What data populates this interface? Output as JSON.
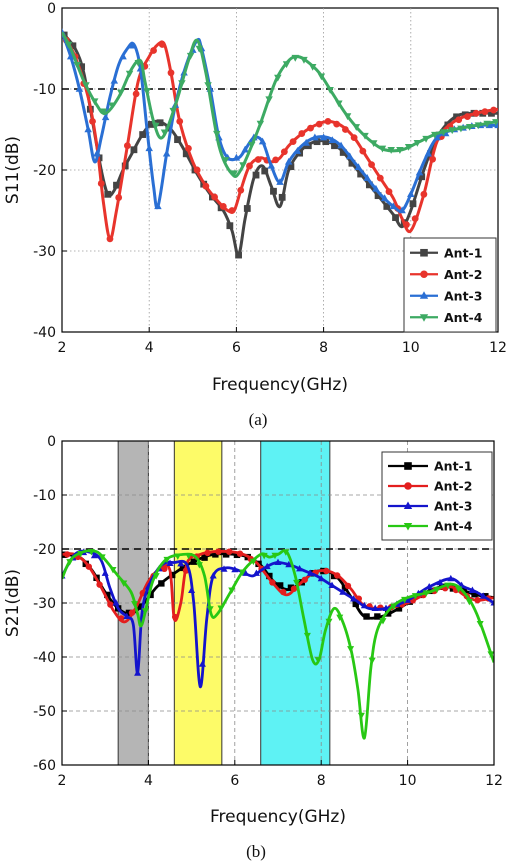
{
  "chart_data": [
    {
      "type": "line",
      "panel": "(a)",
      "xlabel": "Frequency(GHz)",
      "ylabel": "S11(dB)",
      "xlim": [
        2,
        12
      ],
      "ylim": [
        -40,
        0
      ],
      "xticks": [
        2,
        4,
        6,
        8,
        10,
        12
      ],
      "yticks": [
        0,
        -10,
        -20,
        -30,
        -40
      ],
      "grid": true,
      "legend_position": "bottom-right",
      "reference_line": -10,
      "series": [
        {
          "name": "Ant-1",
          "color": "#444444",
          "marker": "square",
          "x": [
            2,
            2.3,
            2.5,
            2.7,
            2.9,
            3.05,
            3.2,
            3.4,
            3.6,
            3.8,
            4.0,
            4.2,
            4.5,
            4.8,
            5.1,
            5.4,
            5.7,
            5.9,
            6.05,
            6.2,
            6.4,
            6.6,
            6.8,
            7.0,
            7.2,
            7.5,
            7.8,
            8.1,
            8.4,
            8.7,
            9.0,
            9.3,
            9.6,
            9.8,
            10.0,
            10.3,
            10.6,
            11.0,
            11.4,
            12
          ],
          "y": [
            -3,
            -5,
            -8,
            -14,
            -20,
            -23,
            -22.5,
            -20,
            -18,
            -16,
            -14.5,
            -14,
            -15,
            -17.5,
            -20.5,
            -23,
            -25,
            -27.5,
            -30.5,
            -26,
            -21,
            -19.5,
            -22,
            -24.5,
            -20,
            -17.5,
            -16.5,
            -16.5,
            -17.5,
            -19.5,
            -21.5,
            -23.5,
            -25.5,
            -27,
            -25,
            -20,
            -16,
            -13.5,
            -13,
            -13
          ]
        },
        {
          "name": "Ant-2",
          "color": "#e8342c",
          "marker": "circle",
          "x": [
            2,
            2.3,
            2.6,
            2.8,
            2.95,
            3.1,
            3.25,
            3.5,
            3.75,
            4.0,
            4.2,
            4.35,
            4.5,
            4.7,
            5.0,
            5.3,
            5.6,
            5.8,
            5.95,
            6.1,
            6.3,
            6.55,
            6.8,
            7.0,
            7.2,
            7.5,
            7.8,
            8.1,
            8.4,
            8.7,
            9.0,
            9.3,
            9.6,
            9.8,
            10.0,
            10.3,
            10.6,
            11.0,
            11.5,
            12
          ],
          "y": [
            -3,
            -6,
            -11,
            -17,
            -24,
            -28.5,
            -25,
            -17,
            -9,
            -6,
            -4.5,
            -4.5,
            -8,
            -14,
            -19,
            -22,
            -24,
            -25,
            -25,
            -22.5,
            -19.5,
            -18.5,
            -19,
            -18.5,
            -17,
            -15.5,
            -14.5,
            -14,
            -14.5,
            -16,
            -18.5,
            -21,
            -23.5,
            -26,
            -27.5,
            -23,
            -16.5,
            -14,
            -13,
            -12.5
          ]
        },
        {
          "name": "Ant-3",
          "color": "#2a6fd4",
          "marker": "triangle-up",
          "x": [
            2,
            2.2,
            2.4,
            2.6,
            2.75,
            2.9,
            3.1,
            3.3,
            3.5,
            3.65,
            3.8,
            3.95,
            4.1,
            4.2,
            4.4,
            4.6,
            4.85,
            5.1,
            5.2,
            5.4,
            5.6,
            5.8,
            6.05,
            6.2,
            6.4,
            6.6,
            6.8,
            7.0,
            7.2,
            7.5,
            7.8,
            8.1,
            8.4,
            8.7,
            9.0,
            9.3,
            9.6,
            9.8,
            10.0,
            10.3,
            10.6,
            11.0,
            11.5,
            12
          ],
          "y": [
            -3,
            -6,
            -10,
            -15,
            -19,
            -16,
            -11,
            -7,
            -5,
            -4.5,
            -7.5,
            -15,
            -22,
            -24.5,
            -18,
            -12,
            -7,
            -4,
            -5,
            -10,
            -16,
            -18.5,
            -18.5,
            -17.5,
            -16,
            -16.5,
            -19.5,
            -21.5,
            -19,
            -17,
            -16,
            -16,
            -17,
            -19,
            -21,
            -23,
            -24.5,
            -25,
            -23,
            -19,
            -16,
            -15,
            -14.5,
            -14.5
          ]
        },
        {
          "name": "Ant-4",
          "color": "#3daa63",
          "marker": "triangle-down",
          "x": [
            2,
            2.2,
            2.5,
            2.8,
            3.0,
            3.3,
            3.6,
            3.8,
            3.9,
            4.1,
            4.3,
            4.6,
            4.9,
            5.1,
            5.3,
            5.6,
            5.9,
            6.1,
            6.5,
            6.9,
            7.2,
            7.4,
            7.6,
            7.9,
            8.2,
            8.5,
            8.8,
            9.1,
            9.4,
            9.8,
            10.2,
            10.6,
            11.0,
            11.5,
            12
          ],
          "y": [
            -3,
            -5,
            -9,
            -12,
            -13,
            -11,
            -7.5,
            -6.5,
            -9,
            -14,
            -16,
            -12,
            -6.5,
            -4,
            -8,
            -17,
            -20.5,
            -20,
            -15,
            -9,
            -6.5,
            -6,
            -6.5,
            -8,
            -10.5,
            -13,
            -15,
            -16.5,
            -17.5,
            -17.5,
            -16.5,
            -15.5,
            -15,
            -14.5,
            -14
          ]
        }
      ],
      "caption": "(a)"
    },
    {
      "type": "line",
      "panel": "(b)",
      "xlabel": "Frequency(GHz)",
      "ylabel": "S21(dB)",
      "xlim": [
        2,
        12
      ],
      "ylim": [
        -60,
        0
      ],
      "xticks": [
        2,
        4,
        6,
        8,
        10,
        12
      ],
      "yticks": [
        0,
        -10,
        -20,
        -30,
        -40,
        -50,
        -60
      ],
      "grid": true,
      "legend_position": "top-right",
      "reference_line": -20,
      "shaded_bands": [
        {
          "from": 3.3,
          "to": 4.0,
          "color": "#b5b5b5"
        },
        {
          "from": 4.6,
          "to": 5.7,
          "color": "#fdfb68"
        },
        {
          "from": 6.6,
          "to": 8.2,
          "color": "#5ef2f4"
        }
      ],
      "series": [
        {
          "name": "Ant-1",
          "color": "#000000",
          "marker": "square",
          "x": [
            2,
            2.4,
            2.7,
            3.0,
            3.3,
            3.6,
            3.9,
            4.2,
            4.6,
            5.0,
            5.5,
            6.0,
            6.3,
            6.6,
            6.9,
            7.2,
            7.5,
            7.8,
            8.1,
            8.4,
            8.7,
            9.0,
            9.4,
            9.8,
            10.3,
            10.8,
            11.2,
            11.6,
            12
          ],
          "y": [
            -21,
            -21.5,
            -24,
            -28,
            -31,
            -32,
            -30,
            -27,
            -24.5,
            -22.5,
            -21,
            -21,
            -21.5,
            -23,
            -26,
            -27.5,
            -26.5,
            -24.5,
            -24,
            -25.5,
            -29,
            -32.5,
            -32.5,
            -31,
            -28.5,
            -27,
            -27.5,
            -28.5,
            -29
          ]
        },
        {
          "name": "Ant-2",
          "color": "#e31e1e",
          "marker": "circle",
          "x": [
            2,
            2.3,
            2.6,
            2.9,
            3.2,
            3.45,
            3.7,
            4.0,
            4.3,
            4.5,
            4.6,
            4.75,
            4.9,
            5.2,
            5.5,
            5.9,
            6.2,
            6.5,
            6.9,
            7.2,
            7.5,
            7.8,
            8.1,
            8.4,
            8.7,
            9.0,
            9.5,
            10.0,
            10.5,
            11.0,
            11.3,
            11.6,
            12
          ],
          "y": [
            -21,
            -21,
            -23,
            -27,
            -31.5,
            -33.5,
            -31,
            -26,
            -23.5,
            -24,
            -33,
            -30,
            -22.5,
            -21,
            -20.5,
            -20.5,
            -21,
            -22.5,
            -26.5,
            -28.5,
            -26.5,
            -24.5,
            -24,
            -25,
            -27.5,
            -30.5,
            -31,
            -30,
            -28,
            -27,
            -28.5,
            -29.5,
            -29
          ]
        },
        {
          "name": "Ant-3",
          "color": "#1414cc",
          "marker": "triangle-up",
          "x": [
            2,
            2.3,
            2.6,
            2.9,
            3.1,
            3.3,
            3.5,
            3.65,
            3.75,
            3.85,
            4.0,
            4.3,
            4.6,
            4.9,
            5.05,
            5.2,
            5.35,
            5.5,
            5.8,
            6.1,
            6.4,
            6.6,
            6.8,
            7.0,
            7.3,
            7.6,
            7.9,
            8.2,
            8.5,
            8.8,
            9.1,
            9.5,
            10.0,
            10.5,
            11.0,
            11.3,
            11.6,
            12
          ],
          "y": [
            -25,
            -21,
            -20.5,
            -22,
            -27,
            -31,
            -32.5,
            -34,
            -43,
            -32,
            -27,
            -23,
            -22.5,
            -23,
            -30,
            -45.5,
            -33,
            -25,
            -23.5,
            -24,
            -25,
            -24,
            -23,
            -22.5,
            -23,
            -24,
            -25,
            -26.5,
            -28,
            -29.5,
            -31,
            -31,
            -29.5,
            -27,
            -25.5,
            -27,
            -28,
            -30
          ]
        },
        {
          "name": "Ant-4",
          "color": "#28c814",
          "marker": "triangle-down",
          "x": [
            2,
            2.2,
            2.5,
            2.8,
            3.0,
            3.3,
            3.6,
            3.75,
            3.85,
            4.1,
            4.4,
            4.8,
            5.1,
            5.3,
            5.45,
            5.6,
            5.9,
            6.2,
            6.6,
            6.8,
            7.0,
            7.2,
            7.4,
            7.6,
            7.8,
            7.95,
            8.1,
            8.3,
            8.5,
            8.7,
            8.85,
            9.0,
            9.15,
            9.3,
            9.6,
            10.0,
            10.5,
            11.0,
            11.3,
            11.6,
            12
          ],
          "y": [
            -25.5,
            -22,
            -20.5,
            -20.5,
            -22,
            -25,
            -28,
            -32,
            -34,
            -26,
            -22,
            -21,
            -21.5,
            -25,
            -32,
            -32,
            -28,
            -24,
            -21,
            -21.5,
            -21,
            -20.5,
            -25,
            -33,
            -40.5,
            -40.5,
            -35,
            -31,
            -33.5,
            -39,
            -46,
            -55,
            -42,
            -35,
            -31,
            -29,
            -28,
            -26.5,
            -28,
            -32,
            -41
          ]
        }
      ],
      "caption": "(b)"
    }
  ]
}
